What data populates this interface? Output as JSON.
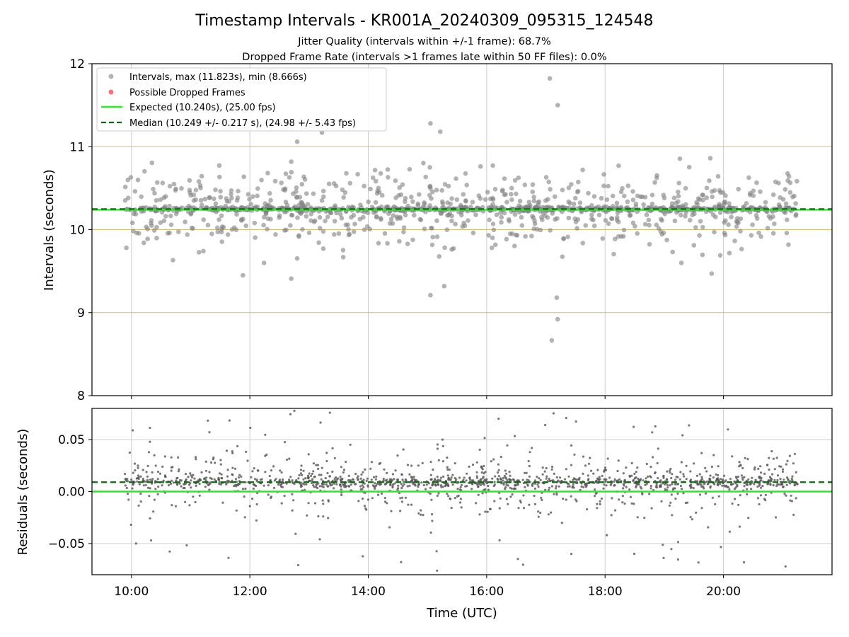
{
  "chart_data": {
    "title": "Timestamp Intervals - KR001A_20240309_095315_124548",
    "subtitles": [
      "Jitter Quality (intervals within +/-1 frame): 68.7%",
      "Dropped Frame Rate (intervals >1 frames late within 50 FF files): 0.0%"
    ],
    "xlabel": "Time (UTC)",
    "x_range": [
      "09:20",
      "21:50"
    ],
    "x_ticks": [
      "10:00",
      "12:00",
      "14:00",
      "16:00",
      "18:00",
      "20:00"
    ],
    "data_time_span": [
      "09:53",
      "21:15"
    ],
    "colors": {
      "points": "#808080",
      "dropped": "#ff4444",
      "expected": "#22ee22",
      "median": "#116611",
      "jitter_band": "#d9b870",
      "grid": "#cccccc"
    },
    "panels": [
      {
        "type": "scatter",
        "ylabel": "Intervals (seconds)",
        "ylim": [
          8,
          12
        ],
        "y_ticks": [
          "8",
          "9",
          "10",
          "11",
          "12"
        ],
        "grid": true,
        "horizontal_bands": [
          9,
          10,
          11
        ],
        "expected_value": 10.24,
        "median_value": 10.249,
        "max_interval": 11.823,
        "min_interval": 8.666,
        "highlight_points": [
          {
            "time": "17:04",
            "value": 11.823
          },
          {
            "time": "17:12",
            "value": 11.5
          },
          {
            "time": "17:12",
            "value": 8.92
          },
          {
            "time": "17:06",
            "value": 8.666
          },
          {
            "time": "15:03",
            "value": 11.28
          },
          {
            "time": "15:13",
            "value": 11.18
          },
          {
            "time": "15:03",
            "value": 9.21
          },
          {
            "time": "15:17",
            "value": 9.32
          },
          {
            "time": "13:13",
            "value": 11.17
          },
          {
            "time": "12:48",
            "value": 11.06
          },
          {
            "time": "17:11",
            "value": 9.18
          },
          {
            "time": "19:48",
            "value": 9.47
          },
          {
            "time": "11:53",
            "value": 9.45
          },
          {
            "time": "12:42",
            "value": 9.41
          }
        ],
        "legend": {
          "placement": "top-left",
          "entries": [
            {
              "label": "Intervals, max (11.823s), min (8.666s)",
              "kind": "dot"
            },
            {
              "label": "Possible Dropped Frames",
              "kind": "dot-red"
            },
            {
              "label": "Expected (10.240s), (25.00 fps)",
              "kind": "line"
            },
            {
              "label": "Median (10.249 +/- 0.217 s), (24.98 +/- 5.43 fps)",
              "kind": "dashed"
            }
          ]
        }
      },
      {
        "type": "scatter",
        "ylabel": "Residuals (seconds)",
        "ylim": [
          -0.08,
          0.08
        ],
        "y_ticks": [
          "−0.05",
          "0.00",
          "0.05"
        ],
        "y_tick_values": [
          -0.05,
          0.0,
          0.05
        ],
        "grid": true,
        "expected_value": 0.0,
        "median_value": 0.009
      }
    ]
  }
}
